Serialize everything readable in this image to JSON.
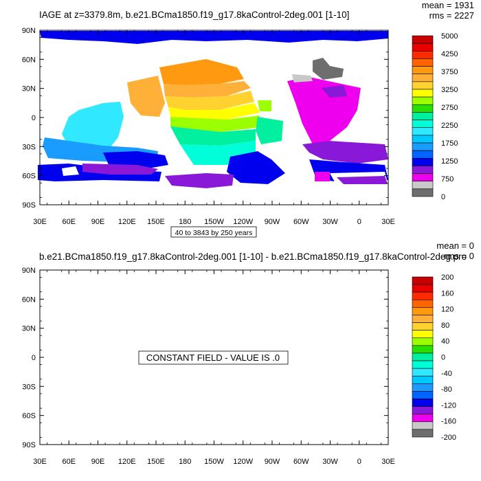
{
  "chart_data": [
    {
      "type": "heatmap",
      "title": "IAGE at z=3379.8m, b.e21.BCma1850.f19_g17.8kaControl-2deg.001 [1-10]",
      "stats": {
        "mean": "mean = 1931",
        "rms": "rms = 2227"
      },
      "xticks": [
        "30E",
        "60E",
        "90E",
        "120E",
        "150E",
        "180",
        "150W",
        "120W",
        "90W",
        "60W",
        "30W",
        "0",
        "30E"
      ],
      "yticks": [
        "90N",
        "60N",
        "30N",
        "0",
        "30S",
        "60S",
        "90S"
      ],
      "contour_info": "40 to 3843 by 250 years",
      "colorbar_labels": [
        "5000",
        "4250",
        "3750",
        "3250",
        "2750",
        "2250",
        "1750",
        "1250",
        "750",
        "0"
      ],
      "colorbar_colors": [
        "#c80000",
        "#e80000",
        "#ff2a00",
        "#ff6400",
        "#ff9a10",
        "#ffb038",
        "#ffd230",
        "#ffff00",
        "#9cff00",
        "#28e000",
        "#00f0a0",
        "#00ffd8",
        "#30e8ff",
        "#00c8ff",
        "#1a9cff",
        "#0064ff",
        "#0000ee",
        "#8a18d8",
        "#ee00ee",
        "#c8c8c8",
        "#6e6e6e"
      ]
    },
    {
      "type": "heatmap",
      "title": "b.e21.BCma1850.f19_g17.8kaControl-2deg.001 [1-10] - b.e21.BCma1850.f19_g17.8kaControl-2deg.pro",
      "stats": {
        "mean": "mean = 0",
        "rms": "rms = 0"
      },
      "xticks": [
        "30E",
        "60E",
        "90E",
        "120E",
        "150E",
        "180",
        "150W",
        "120W",
        "90W",
        "60W",
        "30W",
        "0",
        "30E"
      ],
      "yticks": [
        "90N",
        "60N",
        "30N",
        "0",
        "30S",
        "60S",
        "90S"
      ],
      "annotation": "CONSTANT FIELD - VALUE IS .0",
      "colorbar_labels": [
        "200",
        "160",
        "120",
        "80",
        "40",
        "0",
        "-40",
        "-80",
        "-120",
        "-160",
        "-200"
      ],
      "colorbar_colors": [
        "#c80000",
        "#e80000",
        "#ff2a00",
        "#ff6400",
        "#ff9a10",
        "#ffb038",
        "#ffd230",
        "#ffff00",
        "#9cff00",
        "#28e000",
        "#00f0a0",
        "#00ffd8",
        "#30e8ff",
        "#00c8ff",
        "#1a9cff",
        "#0064ff",
        "#0000ee",
        "#8a18d8",
        "#ee00ee",
        "#c8c8c8",
        "#6e6e6e"
      ]
    }
  ]
}
